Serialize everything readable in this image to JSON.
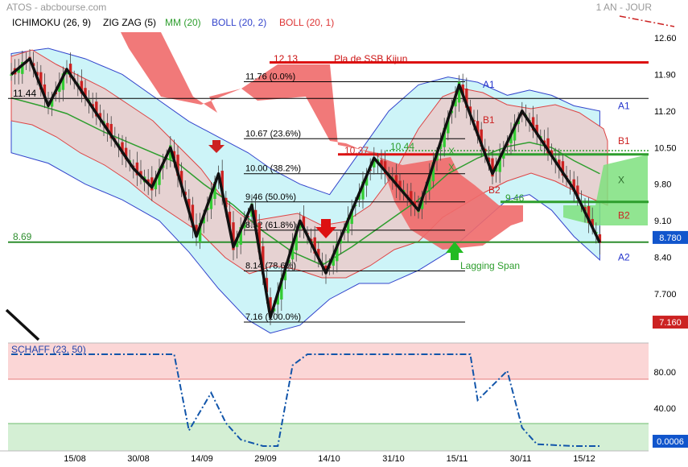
{
  "header": {
    "source": "ATOS - abcbourse.com",
    "period": "1 AN - JOUR"
  },
  "legend": [
    {
      "label": "ICHIMOKU (26, 9)",
      "color": "#000000"
    },
    {
      "label": "ZIG ZAG (5)",
      "color": "#000000"
    },
    {
      "label": "MM (20)",
      "color": "#2e9e2e"
    },
    {
      "label": "BOLL (20, 2)",
      "color": "#3344cc"
    },
    {
      "label": "BOLL (20, 1)",
      "color": "#dd3333"
    }
  ],
  "colors": {
    "up": "#33cc33",
    "down": "#cc2222",
    "bollinger_outer_fill": "#cdf4f8",
    "bollinger_inner_fill": "#e8d4d4",
    "cloud_red": "#f06a6a",
    "cloud_green": "#7ee07e",
    "ma": "#2e9e2e",
    "fib": "#000000",
    "schaff": "#1155aa"
  },
  "chart_data": [
    {
      "type": "candlestick",
      "x_tick_labels": [
        "15/08",
        "30/08",
        "14/09",
        "29/09",
        "14/10",
        "31/10",
        "15/11",
        "30/11",
        "15/12"
      ],
      "y_tick_labels": [
        "12.60",
        "11.90",
        "11.20",
        "10.50",
        "9.80",
        "9.10",
        "8.40",
        "7.700"
      ],
      "ylim": [
        7.0,
        12.9
      ],
      "horizontal_levels": [
        {
          "label": "12.13",
          "value": 12.13,
          "text": "Pla de SSB Kijun"
        },
        {
          "label": "11.44",
          "value": 11.44
        },
        {
          "label": "8.69",
          "value": 8.69
        }
      ],
      "fibonacci": [
        {
          "label": "11.76 (0.0%)",
          "value": 11.76
        },
        {
          "label": "10.67 (23.6%)",
          "value": 10.67
        },
        {
          "label": "10.00 (38.2%)",
          "value": 10.0
        },
        {
          "label": "9.46 (50.0%)",
          "value": 9.46
        },
        {
          "label": "8.92 (61.8%)",
          "value": 8.92
        },
        {
          "label": "8.14 (78.6%)",
          "value": 8.14
        },
        {
          "label": "7.16 (100.0%)",
          "value": 7.16
        }
      ],
      "annotations": [
        {
          "text": "10.37",
          "value": 10.37
        },
        {
          "text": "10.44",
          "value": 10.44
        },
        {
          "text": "9.46",
          "value": 9.46
        },
        {
          "text": "Lagging Span"
        },
        {
          "text": "A1"
        },
        {
          "text": "B1"
        },
        {
          "text": "B2"
        },
        {
          "text": "X"
        },
        {
          "text": "X"
        }
      ],
      "right_labels": [
        {
          "text": "A1",
          "value": 11.3
        },
        {
          "text": "B1",
          "value": 10.63
        },
        {
          "text": "X",
          "value": 9.88
        },
        {
          "text": "B2",
          "value": 9.2
        },
        {
          "text": "A2",
          "value": 8.4
        }
      ],
      "price_badges": [
        {
          "text": "8.780",
          "value": 8.78,
          "color": "#1155cc"
        },
        {
          "text": "7.160",
          "value": 7.16,
          "color": "#cc2222"
        }
      ],
      "zigzag": [
        [
          0,
          11.9
        ],
        [
          5,
          12.2
        ],
        [
          10,
          11.3
        ],
        [
          15,
          12.0
        ],
        [
          33,
          10.1
        ],
        [
          38,
          9.74
        ],
        [
          43,
          10.5
        ],
        [
          50,
          8.8
        ],
        [
          56,
          10.0
        ],
        [
          60,
          8.6
        ],
        [
          65,
          9.4
        ],
        [
          70,
          7.25
        ],
        [
          78,
          9.1
        ],
        [
          85,
          8.1
        ],
        [
          98,
          10.3
        ],
        [
          110,
          9.3
        ],
        [
          121,
          11.7
        ],
        [
          130,
          10.0
        ],
        [
          138,
          11.2
        ],
        [
          152,
          9.7
        ],
        [
          159,
          8.68
        ]
      ],
      "ma": [
        [
          0,
          11.45
        ],
        [
          8,
          11.3
        ],
        [
          15,
          11.15
        ],
        [
          25,
          10.8
        ],
        [
          35,
          10.5
        ],
        [
          45,
          10.2
        ],
        [
          52,
          9.8
        ],
        [
          60,
          9.4
        ],
        [
          68,
          8.9
        ],
        [
          76,
          8.5
        ],
        [
          84,
          8.25
        ],
        [
          92,
          8.6
        ],
        [
          100,
          9.0
        ],
        [
          110,
          9.5
        ],
        [
          118,
          10.0
        ],
        [
          126,
          10.3
        ],
        [
          134,
          10.52
        ],
        [
          140,
          10.6
        ],
        [
          146,
          10.5
        ],
        [
          152,
          10.25
        ],
        [
          159,
          10.0
        ]
      ],
      "bollinger_upper_outer": [
        [
          0,
          12.3
        ],
        [
          10,
          12.4
        ],
        [
          20,
          12.2
        ],
        [
          30,
          11.9
        ],
        [
          40,
          11.4
        ],
        [
          48,
          11.0
        ],
        [
          56,
          10.7
        ],
        [
          64,
          10.4
        ],
        [
          70,
          10.1
        ],
        [
          78,
          9.8
        ],
        [
          86,
          9.6
        ],
        [
          94,
          10.4
        ],
        [
          102,
          11.2
        ],
        [
          110,
          11.7
        ],
        [
          118,
          11.85
        ],
        [
          126,
          11.75
        ],
        [
          134,
          11.5
        ],
        [
          140,
          11.6
        ],
        [
          146,
          11.5
        ],
        [
          152,
          11.3
        ],
        [
          159,
          11.2
        ]
      ],
      "bollinger_lower_outer": [
        [
          0,
          10.4
        ],
        [
          10,
          10.2
        ],
        [
          20,
          9.8
        ],
        [
          30,
          9.5
        ],
        [
          40,
          9.1
        ],
        [
          48,
          8.5
        ],
        [
          56,
          7.8
        ],
        [
          64,
          7.2
        ],
        [
          70,
          6.95
        ],
        [
          78,
          7.1
        ],
        [
          86,
          7.6
        ],
        [
          94,
          7.9
        ],
        [
          102,
          7.9
        ],
        [
          110,
          8.15
        ],
        [
          118,
          8.5
        ],
        [
          126,
          9.0
        ],
        [
          134,
          9.5
        ],
        [
          140,
          9.6
        ],
        [
          146,
          9.3
        ],
        [
          152,
          8.8
        ],
        [
          159,
          8.35
        ]
      ],
      "schaff": {
        "title": "SCHAFF (23, 50)",
        "ylim": [
          0,
          100
        ],
        "y_tick_labels": [
          "80.00",
          "40.00"
        ],
        "levels": [
          75,
          25
        ],
        "last_value_label": "0.0006",
        "points": [
          [
            0,
            100
          ],
          [
            44,
            100
          ],
          [
            48,
            17
          ],
          [
            54,
            58
          ],
          [
            58,
            25
          ],
          [
            62,
            7
          ],
          [
            68,
            0
          ],
          [
            72,
            0
          ],
          [
            76,
            88
          ],
          [
            80,
            100
          ],
          [
            124,
            100
          ],
          [
            126,
            50
          ],
          [
            134,
            82
          ],
          [
            138,
            20
          ],
          [
            142,
            2
          ],
          [
            152,
            0
          ],
          [
            159,
            0
          ]
        ]
      }
    }
  ]
}
